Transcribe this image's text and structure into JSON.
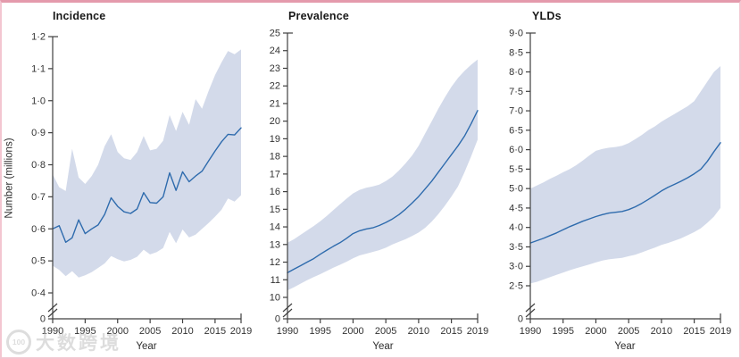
{
  "figure": {
    "xlabel": "Year",
    "ylabel": "Number (millions)",
    "x_tick_years": [
      1990,
      1995,
      2000,
      2005,
      2010,
      2015,
      2019
    ],
    "y_axis_zero_label": "0",
    "axis_break": true
  },
  "colors": {
    "line": "#2e6bad",
    "band": "#d3daea",
    "axis": "#404040",
    "tick_text": "#333333",
    "title_text": "#191919",
    "frame_border_top": "#e49aac",
    "frame_border": "#f3c6d1",
    "watermark": "#c1c1c1"
  },
  "watermark": {
    "badge": "100",
    "text": "大数跨境"
  },
  "chart_data": [
    {
      "type": "line",
      "title": "Incidence",
      "ylabel": "Number (millions)",
      "xlabel": "Year",
      "ylim_shown": [
        0.4,
        1.2
      ],
      "has_zero_break": true,
      "legend": "none",
      "grid": false,
      "x": [
        1990,
        1991,
        1992,
        1993,
        1994,
        1995,
        1996,
        1997,
        1998,
        1999,
        2000,
        2001,
        2002,
        2003,
        2004,
        2005,
        2006,
        2007,
        2008,
        2009,
        2010,
        2011,
        2012,
        2013,
        2014,
        2015,
        2016,
        2017,
        2018,
        2019
      ],
      "ytick_values": [
        1.2,
        1.1,
        1.0,
        0.9,
        0.8,
        0.7,
        0.6,
        0.5,
        0.4
      ],
      "ytick_labels": [
        "1·2",
        "1·1",
        "1·0",
        "0·9",
        "0·8",
        "0·7",
        "0·6",
        "0·5",
        "0·4"
      ],
      "series": [
        {
          "name": "mean",
          "values": [
            0.6,
            0.61,
            0.558,
            0.572,
            0.628,
            0.585,
            0.6,
            0.612,
            0.645,
            0.697,
            0.67,
            0.653,
            0.648,
            0.662,
            0.713,
            0.682,
            0.68,
            0.7,
            0.775,
            0.72,
            0.778,
            0.747,
            0.765,
            0.78,
            0.812,
            0.843,
            0.872,
            0.895,
            0.893,
            0.915
          ]
        },
        {
          "name": "upper uncertainty",
          "values": [
            0.77,
            0.73,
            0.718,
            0.85,
            0.76,
            0.74,
            0.765,
            0.8,
            0.858,
            0.895,
            0.84,
            0.82,
            0.815,
            0.84,
            0.89,
            0.845,
            0.85,
            0.875,
            0.955,
            0.905,
            0.965,
            0.925,
            1.005,
            0.975,
            1.03,
            1.08,
            1.12,
            1.155,
            1.145,
            1.16
          ]
        },
        {
          "name": "lower uncertainty",
          "values": [
            0.485,
            0.472,
            0.452,
            0.468,
            0.448,
            0.455,
            0.465,
            0.478,
            0.492,
            0.515,
            0.505,
            0.498,
            0.503,
            0.513,
            0.535,
            0.52,
            0.527,
            0.54,
            0.59,
            0.555,
            0.598,
            0.573,
            0.582,
            0.6,
            0.618,
            0.638,
            0.66,
            0.695,
            0.685,
            0.705
          ]
        }
      ]
    },
    {
      "type": "line",
      "title": "Prevalence",
      "ylabel": "",
      "xlabel": "Year",
      "ylim_shown": [
        10,
        25
      ],
      "has_zero_break": true,
      "legend": "none",
      "grid": false,
      "x": [
        1990,
        1991,
        1992,
        1993,
        1994,
        1995,
        1996,
        1997,
        1998,
        1999,
        2000,
        2001,
        2002,
        2003,
        2004,
        2005,
        2006,
        2007,
        2008,
        2009,
        2010,
        2011,
        2012,
        2013,
        2014,
        2015,
        2016,
        2017,
        2018,
        2019
      ],
      "ytick_values": [
        25,
        24,
        23,
        22,
        21,
        20,
        19,
        18,
        17,
        16,
        15,
        14,
        13,
        12,
        11,
        10
      ],
      "ytick_labels": [
        "25",
        "24",
        "23",
        "22",
        "21",
        "20",
        "19",
        "18",
        "17",
        "16",
        "15",
        "14",
        "13",
        "12",
        "11",
        "10"
      ],
      "series": [
        {
          "name": "mean",
          "values": [
            11.4,
            11.6,
            11.8,
            12.0,
            12.2,
            12.45,
            12.68,
            12.9,
            13.1,
            13.35,
            13.62,
            13.78,
            13.88,
            13.95,
            14.08,
            14.25,
            14.45,
            14.7,
            15.0,
            15.35,
            15.72,
            16.15,
            16.6,
            17.1,
            17.6,
            18.1,
            18.6,
            19.15,
            19.85,
            20.6
          ]
        },
        {
          "name": "upper uncertainty",
          "values": [
            13.1,
            13.3,
            13.55,
            13.8,
            14.05,
            14.32,
            14.62,
            14.95,
            15.28,
            15.6,
            15.9,
            16.1,
            16.22,
            16.3,
            16.4,
            16.6,
            16.85,
            17.2,
            17.6,
            18.05,
            18.6,
            19.3,
            20.0,
            20.7,
            21.35,
            21.95,
            22.45,
            22.85,
            23.2,
            23.5
          ]
        },
        {
          "name": "lower uncertainty",
          "values": [
            10.4,
            10.58,
            10.78,
            10.98,
            11.15,
            11.32,
            11.5,
            11.68,
            11.85,
            12.02,
            12.22,
            12.38,
            12.48,
            12.58,
            12.68,
            12.82,
            13.0,
            13.15,
            13.3,
            13.48,
            13.68,
            13.95,
            14.3,
            14.72,
            15.2,
            15.72,
            16.3,
            17.1,
            18.0,
            18.95
          ]
        }
      ]
    },
    {
      "type": "line",
      "title": "YLDs",
      "ylabel": "",
      "xlabel": "Year",
      "ylim_shown": [
        2.5,
        9.0
      ],
      "has_zero_break": true,
      "legend": "none",
      "grid": false,
      "x": [
        1990,
        1991,
        1992,
        1993,
        1994,
        1995,
        1996,
        1997,
        1998,
        1999,
        2000,
        2001,
        2002,
        2003,
        2004,
        2005,
        2006,
        2007,
        2008,
        2009,
        2010,
        2011,
        2012,
        2013,
        2014,
        2015,
        2016,
        2017,
        2018,
        2019
      ],
      "ytick_values": [
        9.0,
        8.5,
        8.0,
        7.5,
        7.0,
        6.5,
        6.0,
        5.5,
        5.0,
        4.5,
        4.0,
        3.5,
        3.0,
        2.5
      ],
      "ytick_labels": [
        "9·0",
        "8·5",
        "8·0",
        "7·5",
        "7·0",
        "6·5",
        "6·0",
        "5·5",
        "5·0",
        "4·5",
        "4·0",
        "3·5",
        "3·0",
        "2·5"
      ],
      "series": [
        {
          "name": "mean",
          "values": [
            3.6,
            3.66,
            3.72,
            3.79,
            3.86,
            3.94,
            4.02,
            4.09,
            4.16,
            4.22,
            4.28,
            4.33,
            4.37,
            4.39,
            4.41,
            4.46,
            4.53,
            4.62,
            4.72,
            4.83,
            4.94,
            5.03,
            5.11,
            5.19,
            5.28,
            5.38,
            5.5,
            5.7,
            5.95,
            6.18
          ]
        },
        {
          "name": "upper uncertainty",
          "values": [
            5.0,
            5.08,
            5.16,
            5.25,
            5.33,
            5.42,
            5.5,
            5.6,
            5.72,
            5.85,
            5.97,
            6.02,
            6.05,
            6.07,
            6.1,
            6.17,
            6.27,
            6.38,
            6.5,
            6.6,
            6.72,
            6.82,
            6.92,
            7.02,
            7.12,
            7.25,
            7.5,
            7.75,
            8.0,
            8.15
          ]
        },
        {
          "name": "lower uncertainty",
          "values": [
            2.56,
            2.6,
            2.66,
            2.72,
            2.78,
            2.84,
            2.9,
            2.95,
            3.0,
            3.05,
            3.1,
            3.15,
            3.18,
            3.2,
            3.22,
            3.26,
            3.3,
            3.36,
            3.42,
            3.48,
            3.55,
            3.6,
            3.66,
            3.72,
            3.8,
            3.88,
            3.98,
            4.12,
            4.28,
            4.5
          ]
        }
      ]
    }
  ]
}
